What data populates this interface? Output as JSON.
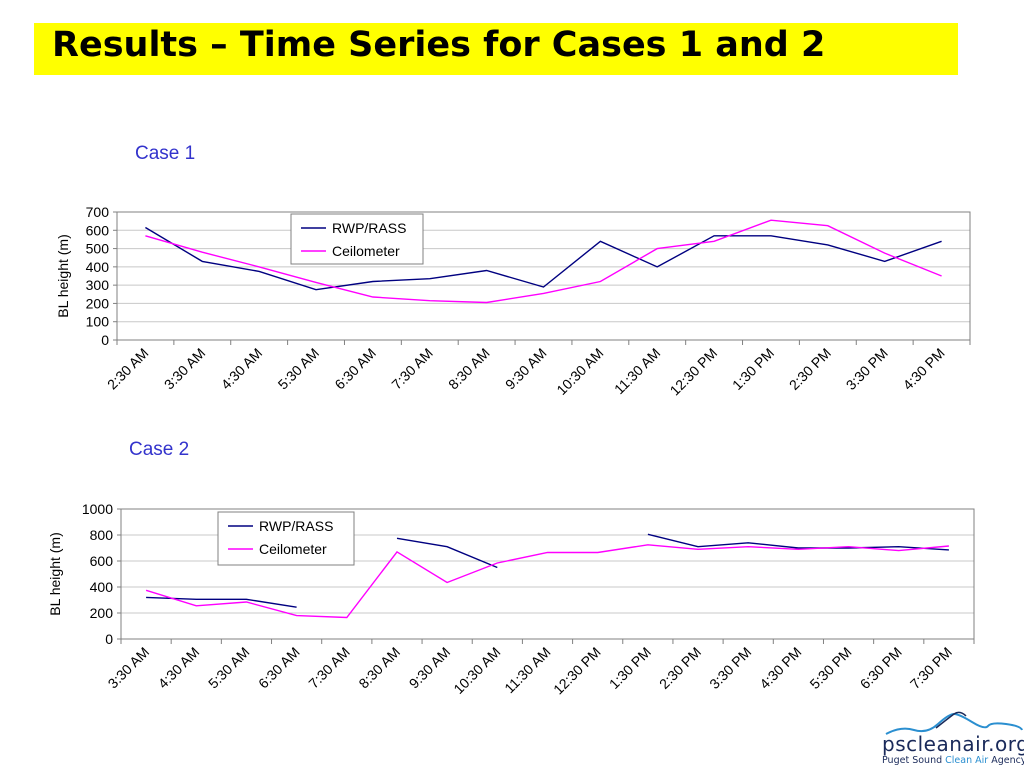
{
  "slide": {
    "title": "Results – Time Series for Cases 1 and 2"
  },
  "chart_data": [
    {
      "type": "line",
      "title": "Case 1",
      "ylabel": "BL height (m)",
      "xlabel": "",
      "ylim": [
        0,
        700
      ],
      "yticks": [
        0,
        100,
        200,
        300,
        400,
        500,
        600,
        700
      ],
      "categories": [
        "2:30 AM",
        "3:30 AM",
        "4:30 AM",
        "5:30 AM",
        "6:30 AM",
        "7:30 AM",
        "8:30 AM",
        "9:30 AM",
        "10:30 AM",
        "11:30 AM",
        "12:30 PM",
        "1:30 PM",
        "2:30 PM",
        "3:30 PM",
        "4:30 PM"
      ],
      "grid": true,
      "legend": "top-left",
      "series": [
        {
          "name": "RWP/RASS",
          "color": "#000080",
          "values": [
            615,
            430,
            375,
            275,
            320,
            335,
            380,
            290,
            540,
            400,
            570,
            570,
            520,
            430,
            540
          ]
        },
        {
          "name": "Ceilometer",
          "color": "#ff00ff",
          "values": [
            570,
            480,
            400,
            315,
            235,
            215,
            205,
            255,
            320,
            500,
            540,
            655,
            625,
            475,
            350
          ]
        }
      ]
    },
    {
      "type": "line",
      "title": "Case 2",
      "ylabel": "BL height (m)",
      "xlabel": "",
      "ylim": [
        0,
        1000
      ],
      "yticks": [
        0,
        200,
        400,
        600,
        800,
        1000
      ],
      "categories": [
        "3:30 AM",
        "4:30 AM",
        "5:30 AM",
        "6:30 AM",
        "7:30 AM",
        "8:30 AM",
        "9:30 AM",
        "10:30 AM",
        "11:30 AM",
        "12:30 PM",
        "1:30 PM",
        "2:30 PM",
        "3:30 PM",
        "4:30 PM",
        "5:30 PM",
        "6:30 PM",
        "7:30 PM"
      ],
      "grid": true,
      "legend": "top-left",
      "series": [
        {
          "name": "RWP/RASS",
          "color": "#000080",
          "values": [
            320,
            305,
            305,
            245,
            null,
            775,
            710,
            550,
            null,
            null,
            805,
            710,
            740,
            700,
            700,
            710,
            685
          ]
        },
        {
          "name": "Ceilometer",
          "color": "#ff00ff",
          "values": [
            375,
            255,
            285,
            180,
            165,
            670,
            435,
            585,
            665,
            665,
            725,
            690,
            710,
            690,
            710,
            680,
            715
          ]
        }
      ]
    }
  ],
  "logo": {
    "name": "pscleanair.org",
    "sub_prefix": "Puget Sound ",
    "sub_accent": "Clean Air",
    "sub_suffix": " Agency"
  }
}
